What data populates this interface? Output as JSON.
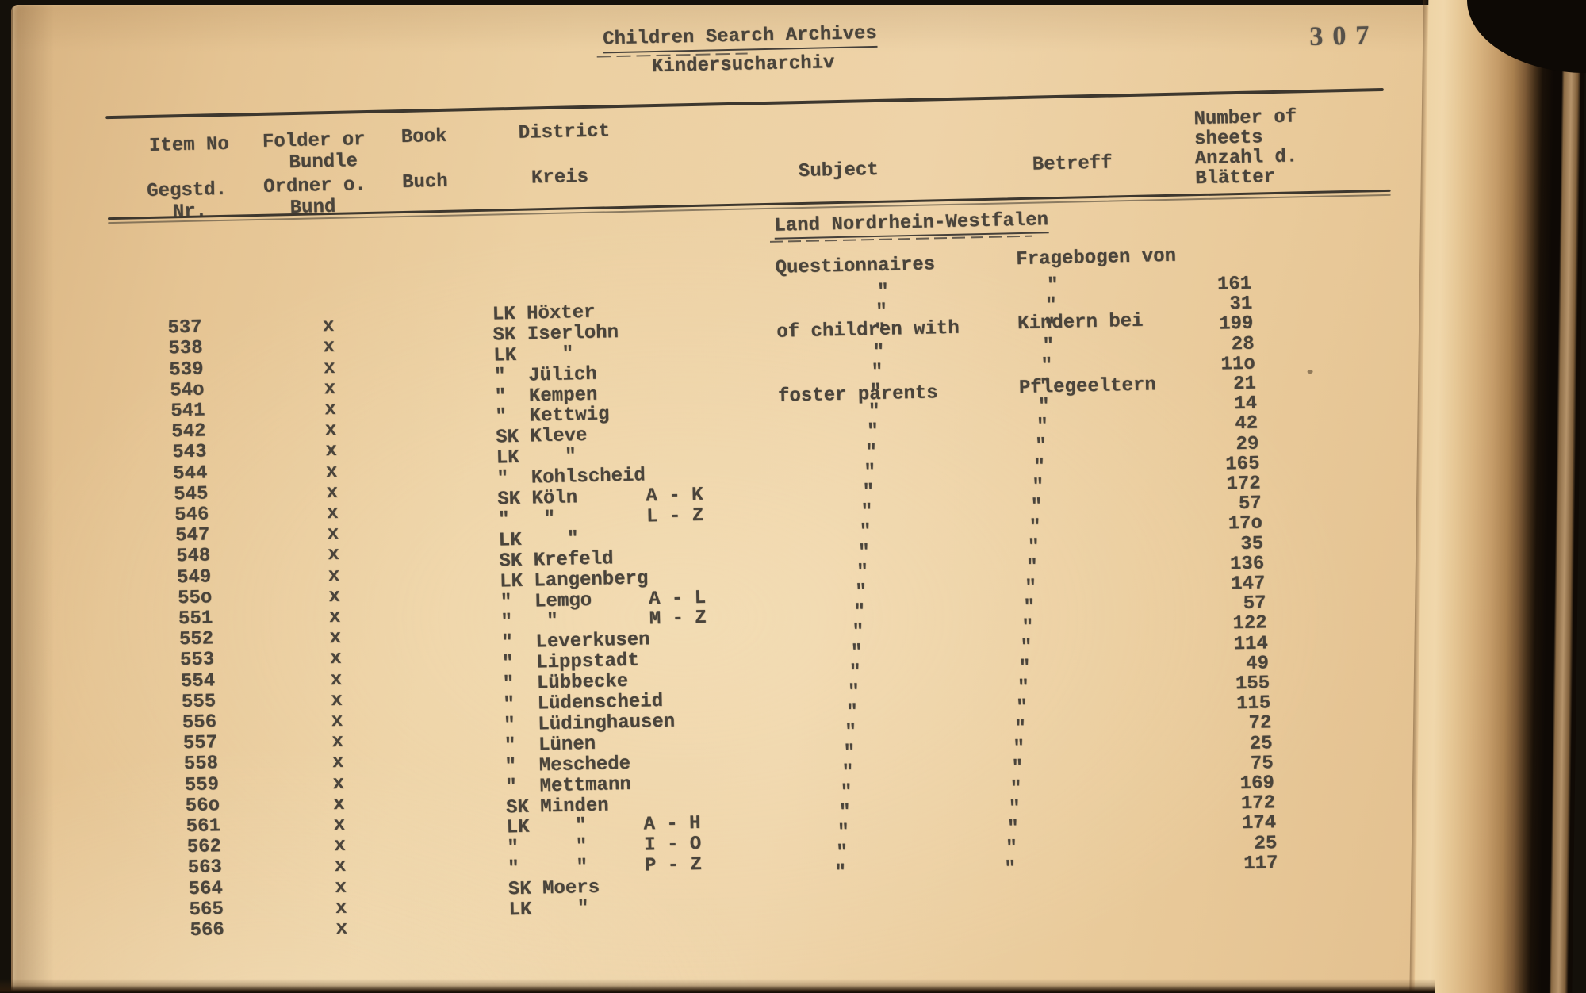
{
  "page": {
    "title_en": "Children Search Archives",
    "title_de": "Kindersucharchiv",
    "page_number": "307"
  },
  "columns": {
    "item_en": "Item No",
    "item_de1": "Gegstd.",
    "item_de2": "Nr.",
    "folder_en1": "Folder or",
    "folder_en2": "Bundle",
    "folder_de1": "Ordner o.",
    "folder_de2": "Bund",
    "book_en": "Book",
    "book_de": "Buch",
    "district_en": "District",
    "district_de": "Kreis",
    "subject_en": "Subject",
    "betreff_de": "Betreff",
    "sheets_en1": "Number of",
    "sheets_en2": "sheets",
    "sheets_de1": "Anzahl d.",
    "sheets_de2": "Blätter"
  },
  "section": {
    "region": "Land Nordrhein-Westfalen",
    "subject_lines": [
      "Questionnaires",
      "of children with",
      "foster parents"
    ],
    "betreff_lines": [
      "Fragebogen von",
      "Kindern bei",
      "Pflegeeltern"
    ]
  },
  "table": {
    "ditto": "\"",
    "rows": [
      {
        "item": "",
        "folder": "",
        "district": "",
        "subject": "\"",
        "betreff": "\"",
        "sheets": "161"
      },
      {
        "item": "537",
        "folder": "x",
        "district": "LK Höxter",
        "subject": "\"",
        "betreff": "\"",
        "sheets": "31"
      },
      {
        "item": "538",
        "folder": "x",
        "district": "SK Iserlohn",
        "subject": "\"",
        "betreff": "\"",
        "sheets": "199"
      },
      {
        "item": "539",
        "folder": "x",
        "district": "LK    \"",
        "subject": "\"",
        "betreff": "\"",
        "sheets": "28"
      },
      {
        "item": "54o",
        "folder": "x",
        "district": "\"  Jülich",
        "subject": "\"",
        "betreff": "\"",
        "sheets": "11o"
      },
      {
        "item": "541",
        "folder": "x",
        "district": "\"  Kempen",
        "subject": "\"",
        "betreff": "\"",
        "sheets": "21"
      },
      {
        "item": "542",
        "folder": "x",
        "district": "\"  Kettwig",
        "subject": "\"",
        "betreff": "\"",
        "sheets": "14"
      },
      {
        "item": "543",
        "folder": "x",
        "district": "SK Kleve",
        "subject": "\"",
        "betreff": "\"",
        "sheets": "42"
      },
      {
        "item": "544",
        "folder": "x",
        "district": "LK    \"",
        "subject": "\"",
        "betreff": "\"",
        "sheets": "29"
      },
      {
        "item": "545",
        "folder": "x",
        "district": "\"  Kohlscheid",
        "subject": "\"",
        "betreff": "\"",
        "sheets": "165"
      },
      {
        "item": "546",
        "folder": "x",
        "district": "SK Köln      A - K",
        "subject": "\"",
        "betreff": "\"",
        "sheets": "172"
      },
      {
        "item": "547",
        "folder": "x",
        "district": "\"   \"        L - Z",
        "subject": "\"",
        "betreff": "\"",
        "sheets": "57"
      },
      {
        "item": "548",
        "folder": "x",
        "district": "LK    \"",
        "subject": "\"",
        "betreff": "\"",
        "sheets": "17o"
      },
      {
        "item": "549",
        "folder": "x",
        "district": "SK Krefeld",
        "subject": "\"",
        "betreff": "\"",
        "sheets": "35"
      },
      {
        "item": "55o",
        "folder": "x",
        "district": "LK Langenberg",
        "subject": "\"",
        "betreff": "\"",
        "sheets": "136"
      },
      {
        "item": "551",
        "folder": "x",
        "district": "\"  Lemgo     A - L",
        "subject": "\"",
        "betreff": "\"",
        "sheets": "147"
      },
      {
        "item": "552",
        "folder": "x",
        "district": "\"   \"        M - Z",
        "subject": "\"",
        "betreff": "\"",
        "sheets": "57"
      },
      {
        "item": "553",
        "folder": "x",
        "district": "\"  Leverkusen",
        "subject": "\"",
        "betreff": "\"",
        "sheets": "122"
      },
      {
        "item": "554",
        "folder": "x",
        "district": "\"  Lippstadt",
        "subject": "\"",
        "betreff": "\"",
        "sheets": "114"
      },
      {
        "item": "555",
        "folder": "x",
        "district": "\"  Lübbecke",
        "subject": "\"",
        "betreff": "\"",
        "sheets": "49"
      },
      {
        "item": "556",
        "folder": "x",
        "district": "\"  Lüdenscheid",
        "subject": "\"",
        "betreff": "\"",
        "sheets": "155"
      },
      {
        "item": "557",
        "folder": "x",
        "district": "\"  Lüdinghausen",
        "subject": "\"",
        "betreff": "\"",
        "sheets": "115"
      },
      {
        "item": "558",
        "folder": "x",
        "district": "\"  Lünen",
        "subject": "\"",
        "betreff": "\"",
        "sheets": "72"
      },
      {
        "item": "559",
        "folder": "x",
        "district": "\"  Meschede",
        "subject": "\"",
        "betreff": "\"",
        "sheets": "25"
      },
      {
        "item": "56o",
        "folder": "x",
        "district": "\"  Mettmann",
        "subject": "\"",
        "betreff": "\"",
        "sheets": "75"
      },
      {
        "item": "561",
        "folder": "x",
        "district": "SK Minden",
        "subject": "\"",
        "betreff": "\"",
        "sheets": "169"
      },
      {
        "item": "562",
        "folder": "x",
        "district": "LK    \"     A - H",
        "subject": "\"",
        "betreff": "\"",
        "sheets": "172"
      },
      {
        "item": "563",
        "folder": "x",
        "district": "\"     \"     I - O",
        "subject": "\"",
        "betreff": "\"",
        "sheets": "174"
      },
      {
        "item": "564",
        "folder": "x",
        "district": "\"     \"     P - Z",
        "subject": "\"",
        "betreff": "\"",
        "sheets": "25"
      },
      {
        "item": "565",
        "folder": "x",
        "district": "SK Moers",
        "subject": "\"",
        "betreff": "\"",
        "sheets": "117"
      },
      {
        "item": "566",
        "folder": "x",
        "district": "LK    \"",
        "subject": "",
        "betreff": "",
        "sheets": ""
      }
    ]
  },
  "colors": {
    "paper": "#ecd0a2",
    "ink": "#4a443b",
    "rule": "#3d372e",
    "background": "#14100a"
  }
}
